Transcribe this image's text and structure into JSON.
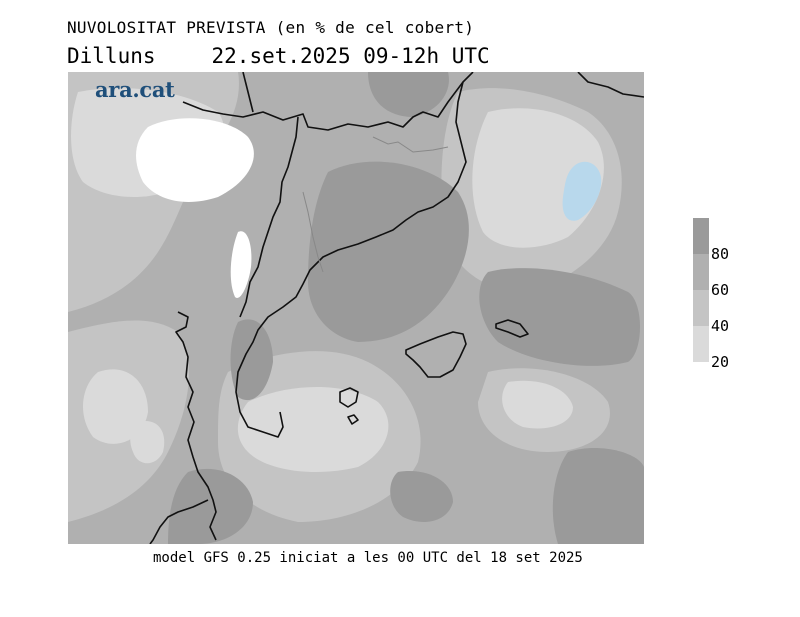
{
  "header": {
    "title": "NUVOLOSITAT PREVISTA (en % de cel cobert)",
    "day": "Dilluns",
    "date": "22.set.2025 09-12h UTC"
  },
  "logo": {
    "text": "ara.cat",
    "color": "#1f4f7a"
  },
  "legend": {
    "bands": [
      {
        "color": "#9a9a9a"
      },
      {
        "color": "#b0b0b0"
      },
      {
        "color": "#c4c4c4"
      },
      {
        "color": "#dadada"
      }
    ],
    "labels": [
      "80",
      "60",
      "40",
      "20"
    ]
  },
  "footer": {
    "text": "model GFS 0.25 iniciat a les 00 UTC del 18 set 2025"
  },
  "colors": {
    "dense": "#9a9a9a",
    "mid": "#b0b0b0",
    "light": "#c4c4c4",
    "lighter": "#dadada",
    "clear": "#ffffff",
    "lake": "#b8d8ec",
    "coast": "#111111",
    "border": "#888888"
  }
}
